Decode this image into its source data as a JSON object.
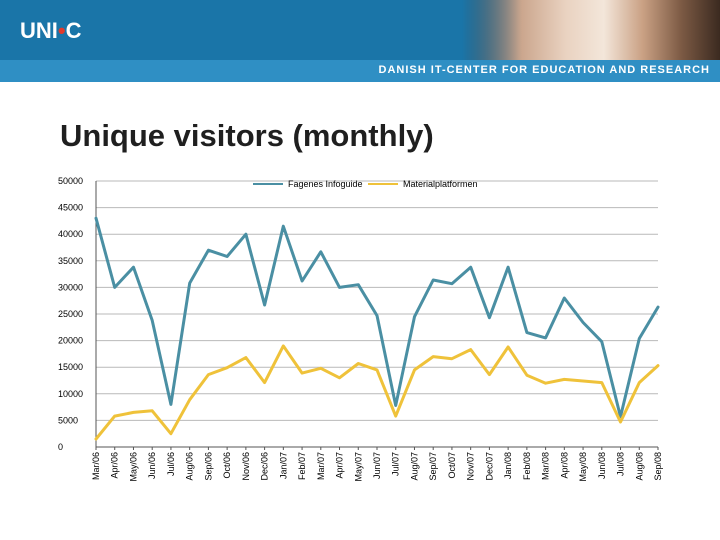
{
  "header": {
    "logo_main": "UNI",
    "logo_dot": "•",
    "logo_end": "C",
    "tagline": "DANISH IT-CENTER FOR EDUCATION AND RESEARCH"
  },
  "colors": {
    "header_blue": "#1a75a8",
    "series_1": "#4a8fa3",
    "series_2": "#efc23a",
    "gridline": "#b9b9b9"
  },
  "chart_data": {
    "type": "line",
    "title": "Unique visitors (monthly)",
    "ylim": [
      0,
      50000
    ],
    "yticks": [
      0,
      5000,
      10000,
      15000,
      20000,
      25000,
      30000,
      35000,
      40000,
      45000,
      50000
    ],
    "grid": true,
    "legend_position": "top-center",
    "categories": [
      "Mar/06",
      "Apr/06",
      "May/06",
      "Jun/06",
      "Jul/06",
      "Aug/06",
      "Sep/06",
      "Oct/06",
      "Nov/06",
      "Dec/06",
      "Jan/07",
      "Feb/07",
      "Mar/07",
      "Apr/07",
      "May/07",
      "Jun/07",
      "Jul/07",
      "Aug/07",
      "Sep/07",
      "Oct/07",
      "Nov/07",
      "Dec/07",
      "Jan/08",
      "Feb/08",
      "Mar/08",
      "Apr/08",
      "May/08",
      "Jun/08",
      "Jul/08",
      "Aug/08",
      "Sep/08"
    ],
    "series": [
      {
        "name": "Fagenes Infoguide",
        "values": [
          43000,
          30000,
          33800,
          23800,
          8000,
          30800,
          37000,
          35800,
          40000,
          26700,
          41500,
          31200,
          36700,
          30000,
          30500,
          24700,
          7800,
          24500,
          31400,
          30700,
          33800,
          24300,
          33800,
          21500,
          20500,
          28000,
          23400,
          19800,
          5700,
          20400,
          26300
        ]
      },
      {
        "name": "Materialplatformen",
        "values": [
          1500,
          5800,
          6500,
          6800,
          2500,
          8900,
          13600,
          14900,
          16800,
          12100,
          19000,
          13900,
          14800,
          13000,
          15700,
          14500,
          5800,
          14500,
          17000,
          16600,
          18300,
          13600,
          18800,
          13500,
          12000,
          12700,
          12400,
          12100,
          4700,
          12100,
          15300
        ]
      }
    ]
  }
}
